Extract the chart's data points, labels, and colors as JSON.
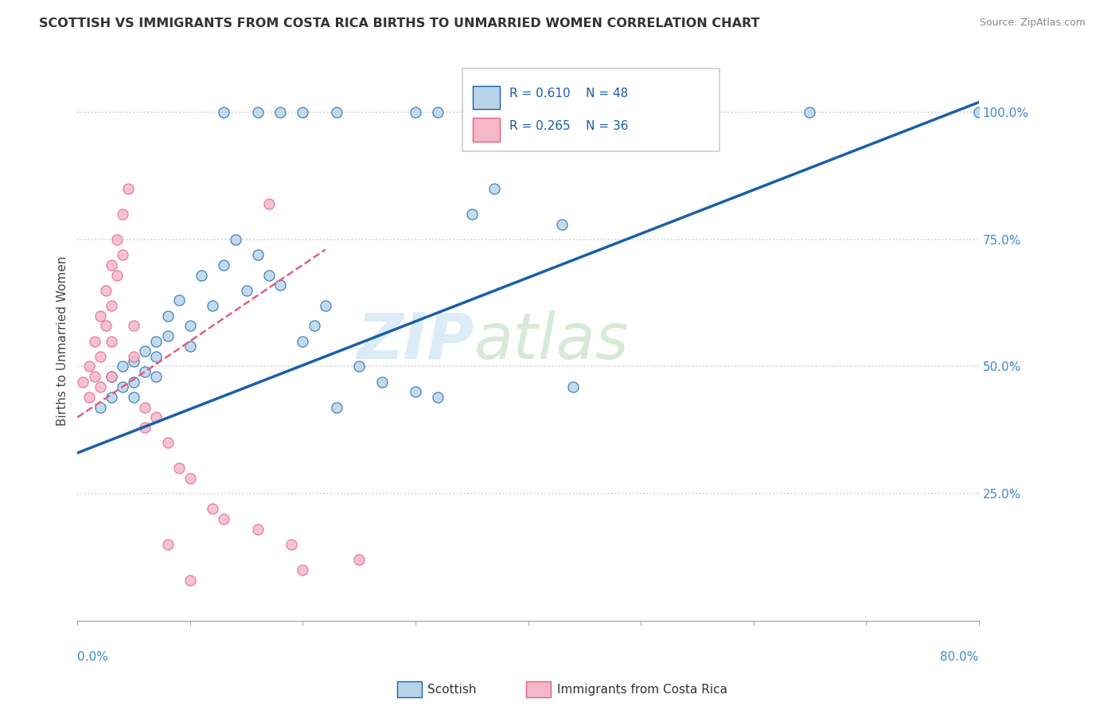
{
  "title": "SCOTTISH VS IMMIGRANTS FROM COSTA RICA BIRTHS TO UNMARRIED WOMEN CORRELATION CHART",
  "source": "Source: ZipAtlas.com",
  "ylabel": "Births to Unmarried Women",
  "watermark_zip": "ZIP",
  "watermark_atlas": "atlas",
  "legend_r1": "R = 0.610",
  "legend_n1": "N = 48",
  "legend_r2": "R = 0.265",
  "legend_n2": "N = 36",
  "blue_fill": "#b8d4ea",
  "blue_edge": "#1a5fa8",
  "pink_fill": "#f4b8c8",
  "pink_edge": "#e06080",
  "blue_line_color": "#1a5fa8",
  "pink_line_color": "#e06080",
  "scottish_x": [
    0.02,
    0.03,
    0.03,
    0.04,
    0.04,
    0.05,
    0.05,
    0.05,
    0.06,
    0.06,
    0.07,
    0.07,
    0.07,
    0.08,
    0.08,
    0.09,
    0.1,
    0.1,
    0.11,
    0.12,
    0.13,
    0.14,
    0.15,
    0.16,
    0.17,
    0.18,
    0.2,
    0.21,
    0.22,
    0.23,
    0.25,
    0.27,
    0.3,
    0.32,
    0.35,
    0.37,
    0.43,
    0.44,
    0.13,
    0.16,
    0.18,
    0.2,
    0.23,
    0.3,
    0.32,
    0.52,
    0.65,
    0.8
  ],
  "scottish_y": [
    0.42,
    0.48,
    0.44,
    0.5,
    0.46,
    0.51,
    0.47,
    0.44,
    0.53,
    0.49,
    0.55,
    0.52,
    0.48,
    0.6,
    0.56,
    0.63,
    0.58,
    0.54,
    0.68,
    0.62,
    0.7,
    0.75,
    0.65,
    0.72,
    0.68,
    0.66,
    0.55,
    0.58,
    0.62,
    0.42,
    0.5,
    0.47,
    0.45,
    0.44,
    0.8,
    0.85,
    0.78,
    0.46,
    1.0,
    1.0,
    1.0,
    1.0,
    1.0,
    1.0,
    1.0,
    1.0,
    1.0,
    1.0
  ],
  "cr_x": [
    0.005,
    0.01,
    0.01,
    0.015,
    0.015,
    0.02,
    0.02,
    0.02,
    0.025,
    0.025,
    0.03,
    0.03,
    0.03,
    0.03,
    0.035,
    0.035,
    0.04,
    0.04,
    0.045,
    0.05,
    0.05,
    0.06,
    0.06,
    0.07,
    0.08,
    0.09,
    0.1,
    0.12,
    0.13,
    0.16,
    0.17,
    0.19,
    0.2,
    0.25,
    0.08,
    0.1
  ],
  "cr_y": [
    0.47,
    0.5,
    0.44,
    0.55,
    0.48,
    0.6,
    0.52,
    0.46,
    0.65,
    0.58,
    0.7,
    0.62,
    0.55,
    0.48,
    0.75,
    0.68,
    0.8,
    0.72,
    0.85,
    0.58,
    0.52,
    0.42,
    0.38,
    0.4,
    0.35,
    0.3,
    0.28,
    0.22,
    0.2,
    0.18,
    0.82,
    0.15,
    0.1,
    0.12,
    0.15,
    0.08
  ],
  "sc_line_x": [
    0.0,
    0.8
  ],
  "sc_line_y": [
    0.33,
    1.02
  ],
  "cr_line_x": [
    0.0,
    0.22
  ],
  "cr_line_y": [
    0.4,
    0.73
  ],
  "xlim": [
    0.0,
    0.8
  ],
  "ylim": [
    0.0,
    1.1
  ],
  "yticks": [
    0.25,
    0.5,
    0.75,
    1.0
  ],
  "ytick_labels": [
    "25.0%",
    "50.0%",
    "75.0%",
    "100.0%"
  ],
  "axis_label_color": "#4488cc",
  "grid_color": "#cccccc",
  "title_color": "#333333",
  "source_color": "#888888"
}
